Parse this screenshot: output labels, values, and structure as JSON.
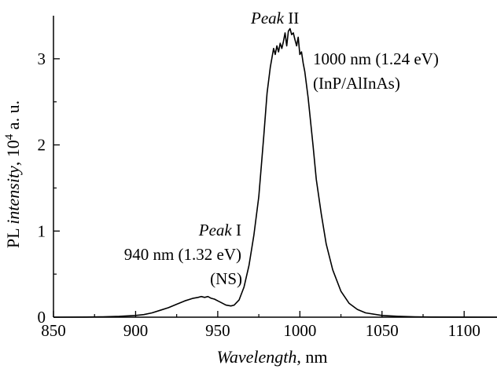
{
  "chart_data": {
    "type": "line",
    "xlabel_italic": "Wavelength",
    "xlabel_unit": ", nm",
    "ylabel_prefix": "PL ",
    "ylabel_italic": "intensity",
    "ylabel_unit_base": ", 10",
    "ylabel_unit_exp": "4",
    "ylabel_unit_tail": " a. u.",
    "xlim": [
      850,
      1120
    ],
    "ylim": [
      0,
      3.5
    ],
    "x_ticks": [
      850,
      900,
      950,
      1000,
      1050,
      1100
    ],
    "x_tick_labels": [
      "850",
      "900",
      "950",
      "1000",
      "1050",
      "1100"
    ],
    "y_ticks": [
      0,
      1,
      2,
      3
    ],
    "y_tick_labels": [
      "0",
      "1",
      "2",
      "3"
    ],
    "annotations": [
      {
        "id": "peak1",
        "italic": "Peak",
        "roman": " I",
        "lines": [
          "940 nm (1.32 eV)",
          "(NS)"
        ]
      },
      {
        "id": "peak2",
        "italic": "Peak",
        "roman": " II",
        "lines": [
          "1000 nm (1.24 eV)",
          "(InP/AlInAs)"
        ]
      }
    ],
    "series": [
      {
        "x": [
          850,
          870,
          880,
          890,
          900,
          905,
          910,
          915,
          920,
          925,
          930,
          935,
          938,
          940,
          942,
          944,
          946,
          948,
          950,
          952,
          955,
          958,
          960,
          963,
          966,
          969,
          972,
          975,
          978,
          980,
          982,
          984,
          985,
          986,
          987,
          988,
          989,
          990,
          991,
          992,
          993,
          994,
          995,
          996,
          997,
          998,
          999,
          1000,
          1001,
          1002,
          1003,
          1005,
          1008,
          1010,
          1013,
          1016,
          1020,
          1025,
          1030,
          1035,
          1040,
          1050,
          1060,
          1070,
          1080,
          1100,
          1120
        ],
        "y": [
          0,
          0.002,
          0.005,
          0.01,
          0.02,
          0.03,
          0.05,
          0.08,
          0.11,
          0.15,
          0.19,
          0.22,
          0.23,
          0.24,
          0.23,
          0.24,
          0.22,
          0.21,
          0.19,
          0.17,
          0.14,
          0.13,
          0.14,
          0.2,
          0.35,
          0.6,
          0.95,
          1.4,
          2.1,
          2.6,
          2.9,
          3.12,
          3.05,
          3.15,
          3.08,
          3.18,
          3.12,
          3.2,
          3.3,
          3.15,
          3.32,
          3.35,
          3.28,
          3.3,
          3.22,
          3.15,
          3.25,
          3.05,
          3.08,
          2.95,
          2.85,
          2.55,
          2.0,
          1.6,
          1.2,
          0.85,
          0.55,
          0.3,
          0.16,
          0.09,
          0.05,
          0.02,
          0.01,
          0.005,
          0.002,
          0.001,
          0
        ]
      }
    ]
  }
}
